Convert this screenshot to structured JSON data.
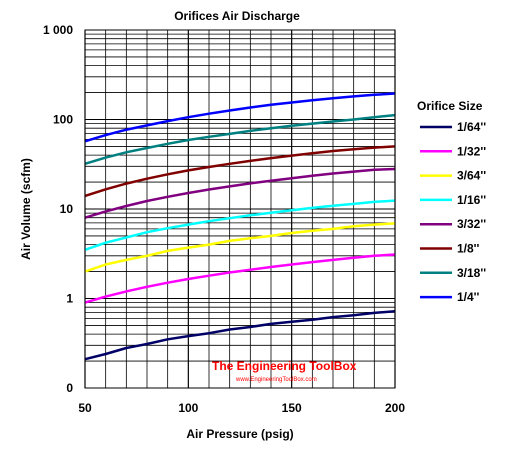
{
  "chart_data": {
    "type": "line",
    "title": "Orifices Air Discharge",
    "xlabel": "Air Pressure (psig)",
    "ylabel": "Air Volume (scfm)",
    "x": [
      50,
      60,
      70,
      80,
      90,
      100,
      110,
      120,
      130,
      140,
      150,
      160,
      170,
      180,
      190,
      200
    ],
    "x_ticks": [
      50,
      100,
      150,
      200
    ],
    "x_tick_labels": [
      "50",
      "100",
      "150",
      "200"
    ],
    "xlim": [
      50,
      200
    ],
    "y_scale": "log",
    "ylim": [
      0.1,
      1000
    ],
    "y_ticks": [
      0.1,
      1,
      10,
      100,
      1000
    ],
    "y_tick_labels": [
      "0",
      "1",
      "10",
      "100",
      "1 000"
    ],
    "grid": true,
    "legend_title": "Orifice Size",
    "legend_position": "right",
    "series": [
      {
        "name": "1/64''",
        "color": "#000066",
        "values": [
          0.21,
          0.24,
          0.28,
          0.31,
          0.35,
          0.38,
          0.41,
          0.45,
          0.48,
          0.52,
          0.55,
          0.58,
          0.62,
          0.65,
          0.69,
          0.72
        ]
      },
      {
        "name": "1/32''",
        "color": "#ff00ff",
        "values": [
          0.9,
          1.05,
          1.2,
          1.35,
          1.5,
          1.65,
          1.8,
          1.95,
          2.1,
          2.25,
          2.4,
          2.55,
          2.7,
          2.85,
          3.0,
          3.1
        ]
      },
      {
        "name": "3/64''",
        "color": "#ffff00",
        "values": [
          2.0,
          2.4,
          2.7,
          3.0,
          3.4,
          3.7,
          4.0,
          4.4,
          4.7,
          5.0,
          5.4,
          5.7,
          6.0,
          6.4,
          6.7,
          6.9
        ]
      },
      {
        "name": "1/16''",
        "color": "#00ffff",
        "values": [
          3.5,
          4.2,
          4.8,
          5.5,
          6.1,
          6.7,
          7.3,
          7.9,
          8.5,
          9.1,
          9.7,
          10.3,
          10.9,
          11.4,
          12.0,
          12.4
        ]
      },
      {
        "name": "3/32''",
        "color": "#800080",
        "values": [
          8.0,
          9.4,
          10.8,
          12.3,
          13.7,
          15.1,
          16.5,
          17.9,
          19.3,
          20.7,
          22.1,
          23.5,
          24.9,
          26.2,
          27.5,
          28.0
        ]
      },
      {
        "name": "1/8''",
        "color": "#800000",
        "values": [
          14.0,
          16.6,
          19.2,
          21.8,
          24.4,
          27.0,
          29.5,
          32.0,
          34.5,
          37.0,
          39.5,
          42.0,
          44.5,
          46.5,
          48.5,
          50.0
        ]
      },
      {
        "name": "3/18''",
        "color": "#008080",
        "values": [
          32.0,
          37.5,
          43.0,
          48.0,
          53.5,
          59.0,
          64.0,
          69.0,
          74.5,
          80.0,
          85.0,
          90.0,
          95.0,
          100.0,
          106.0,
          112.0
        ]
      },
      {
        "name": "1/4''",
        "color": "#0000ff",
        "values": [
          57.0,
          67.0,
          77.0,
          86.0,
          96.0,
          106.0,
          116.0,
          126.0,
          136.0,
          146.0,
          155.0,
          164.0,
          173.0,
          181.0,
          189.0,
          195.0
        ]
      }
    ]
  },
  "watermark": {
    "text": "The Engineering ToolBox",
    "subtext": "www.EngineeringToolBox.com",
    "color": "#ff0000"
  }
}
